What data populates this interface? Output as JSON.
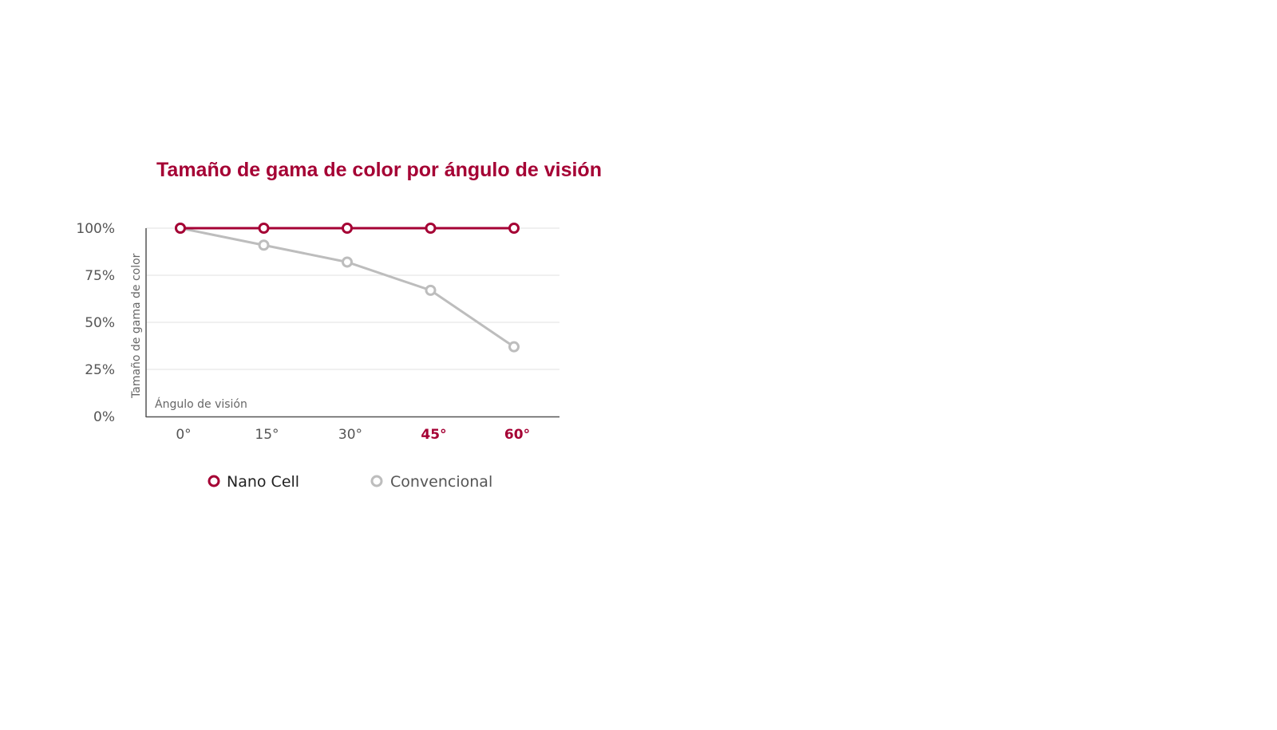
{
  "chart_data": {
    "type": "line",
    "title": "Tamaño de gama de color por ángulo de visión",
    "xlabel": "Ángulo de visión",
    "ylabel": "Tamaño de gama de color",
    "categories": [
      "0°",
      "15°",
      "30°",
      "45°",
      "60°"
    ],
    "highlighted_categories": [
      "45°",
      "60°"
    ],
    "yticks": [
      "0%",
      "25%",
      "50%",
      "75%",
      "100%"
    ],
    "ylim": [
      0,
      100
    ],
    "grid": true,
    "legend_position": "bottom",
    "series": [
      {
        "name": "Nano Cell",
        "color": "#a50034",
        "values": [
          100,
          100,
          100,
          100,
          100
        ]
      },
      {
        "name": "Convencional",
        "color": "#bdbdbd",
        "values": [
          100,
          91,
          82,
          67,
          37
        ]
      }
    ]
  },
  "colors": {
    "accent": "#a50034",
    "axis": "#555555",
    "grid": "#e2e2e2"
  }
}
